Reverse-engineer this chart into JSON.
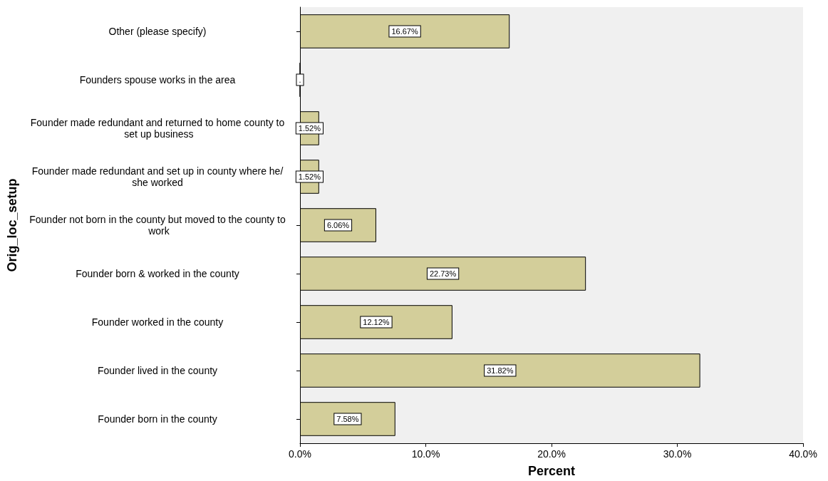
{
  "chart_data": {
    "type": "bar",
    "orientation": "horizontal",
    "xlabel": "Percent",
    "ylabel": "Orig_loc_setup",
    "categories": [
      "Other (please specify)",
      "Founders spouse works in the area",
      "Founder made redundant and returned to home county to set up business",
      "Founder made redundant and set up in county where he/she worked",
      "Founder not born in the county but moved to the county to work",
      "Founder born & worked in the county",
      "Founder worked in the county",
      "Founder lived in the county",
      "Founder born in the county"
    ],
    "values": [
      16.67,
      0,
      1.52,
      1.52,
      6.06,
      22.73,
      12.12,
      31.82,
      7.58
    ],
    "value_labels": [
      "16.67%",
      ".",
      "1.52%",
      "1.52%",
      "6.06%",
      "22.73%",
      "12.12%",
      "31.82%",
      "7.58%"
    ],
    "color": "#d3ce9a",
    "xlim": [
      0,
      40
    ],
    "xticks": [
      {
        "value": 0,
        "label": "0.0%"
      },
      {
        "value": 10,
        "label": "10.0%"
      },
      {
        "value": 20,
        "label": "20.0%"
      },
      {
        "value": 30,
        "label": "30.0%"
      },
      {
        "value": 40,
        "label": "40.0%"
      }
    ]
  }
}
